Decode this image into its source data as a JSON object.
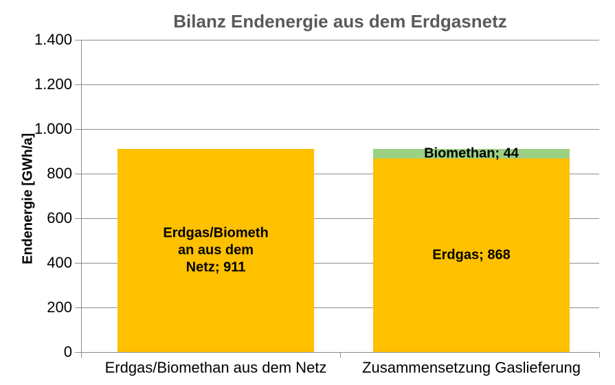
{
  "chart_data": {
    "type": "bar",
    "title": "Bilanz Endenergie aus dem Erdgasnetz",
    "ylabel": "Endenergie [GWh/a]",
    "xlabel": "",
    "ylim": [
      0,
      1400
    ],
    "grid": true,
    "legend": "none",
    "yticks": [
      {
        "value": 1400,
        "label": "1.400"
      },
      {
        "value": 1200,
        "label": "1.200"
      },
      {
        "value": 1000,
        "label": "1.000"
      },
      {
        "value": 800,
        "label": "800"
      },
      {
        "value": 600,
        "label": "600"
      },
      {
        "value": 400,
        "label": "400"
      },
      {
        "value": 200,
        "label": "200"
      },
      {
        "value": 0,
        "label": "0"
      }
    ],
    "categories": [
      "Erdgas/Biomethan aus dem Netz",
      "Zusammensetzung Gaslieferung"
    ],
    "bars": [
      {
        "category": "Erdgas/Biomethan aus dem Netz",
        "segments": [
          {
            "name": "Erdgas/Biomethan aus dem Netz",
            "value": 911,
            "color": "#FFC000",
            "label_lines": [
              "Erdgas/Biometh",
              "an aus dem",
              "Netz; 911"
            ]
          }
        ]
      },
      {
        "category": "Zusammensetzung Gaslieferung",
        "segments": [
          {
            "name": "Erdgas",
            "value": 868,
            "color": "#FFC000",
            "label_lines": [
              "Erdgas; 868"
            ]
          },
          {
            "name": "Biomethan",
            "value": 44,
            "color": "#9CD184",
            "label_lines": [
              "Biomethan; 44"
            ]
          }
        ]
      }
    ],
    "colors": {
      "erdgas": "#FFC000",
      "biomethan": "#9CD184",
      "gridline": "#8C8C8C",
      "axis_line": "#8C8C8C",
      "title_text": "#595959",
      "label_text": "#000000"
    }
  }
}
